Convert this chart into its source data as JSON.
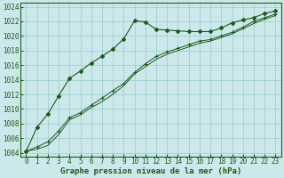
{
  "title": "Graphe pression niveau de la mer (hPa)",
  "bg_color": "#cce8ea",
  "grid_color": "#99cccc",
  "line_color": "#1a5c1a",
  "xlim": [
    -0.5,
    23.5
  ],
  "ylim": [
    1003.5,
    1024.5
  ],
  "xticks": [
    0,
    1,
    2,
    3,
    4,
    5,
    6,
    7,
    8,
    9,
    10,
    11,
    12,
    13,
    14,
    15,
    16,
    17,
    18,
    19,
    20,
    21,
    22,
    23
  ],
  "yticks": [
    1004,
    1006,
    1008,
    1010,
    1012,
    1014,
    1016,
    1018,
    1020,
    1022,
    1024
  ],
  "series1_x": [
    0,
    1,
    2,
    3,
    4,
    5,
    6,
    7,
    8,
    9,
    10,
    11,
    12,
    13,
    14,
    15,
    16,
    17,
    18,
    19,
    20,
    21,
    22,
    23
  ],
  "series1_y": [
    1004.2,
    1007.5,
    1009.3,
    1011.8,
    1014.2,
    1015.2,
    1016.3,
    1017.2,
    1018.2,
    1019.6,
    1022.1,
    1021.9,
    1020.9,
    1020.8,
    1020.7,
    1020.6,
    1020.6,
    1020.6,
    1021.1,
    1021.8,
    1022.2,
    1022.5,
    1023.1,
    1023.4
  ],
  "series2_x": [
    0,
    1,
    2,
    3,
    4,
    5,
    6,
    7,
    8,
    9,
    10,
    11,
    12,
    13,
    14,
    15,
    16,
    17,
    18,
    19,
    20,
    21,
    22,
    23
  ],
  "series2_y": [
    1004.2,
    1004.8,
    1005.5,
    1007.0,
    1008.8,
    1009.5,
    1010.5,
    1011.5,
    1012.5,
    1013.5,
    1015.0,
    1016.2,
    1017.2,
    1017.8,
    1018.3,
    1018.8,
    1019.3,
    1019.5,
    1020.0,
    1020.5,
    1021.2,
    1022.0,
    1022.5,
    1023.0
  ],
  "series3_x": [
    0,
    1,
    2,
    3,
    4,
    5,
    6,
    7,
    8,
    9,
    10,
    11,
    12,
    13,
    14,
    15,
    16,
    17,
    18,
    19,
    20,
    21,
    22,
    23
  ],
  "series3_y": [
    1004.2,
    1004.5,
    1005.0,
    1006.5,
    1008.5,
    1009.2,
    1010.2,
    1011.0,
    1012.0,
    1013.2,
    1014.8,
    1015.8,
    1016.8,
    1017.5,
    1018.0,
    1018.5,
    1019.0,
    1019.3,
    1019.8,
    1020.3,
    1021.0,
    1021.7,
    1022.3,
    1022.8
  ],
  "tick_fontsize": 5.5,
  "xlabel_fontsize": 6.5
}
